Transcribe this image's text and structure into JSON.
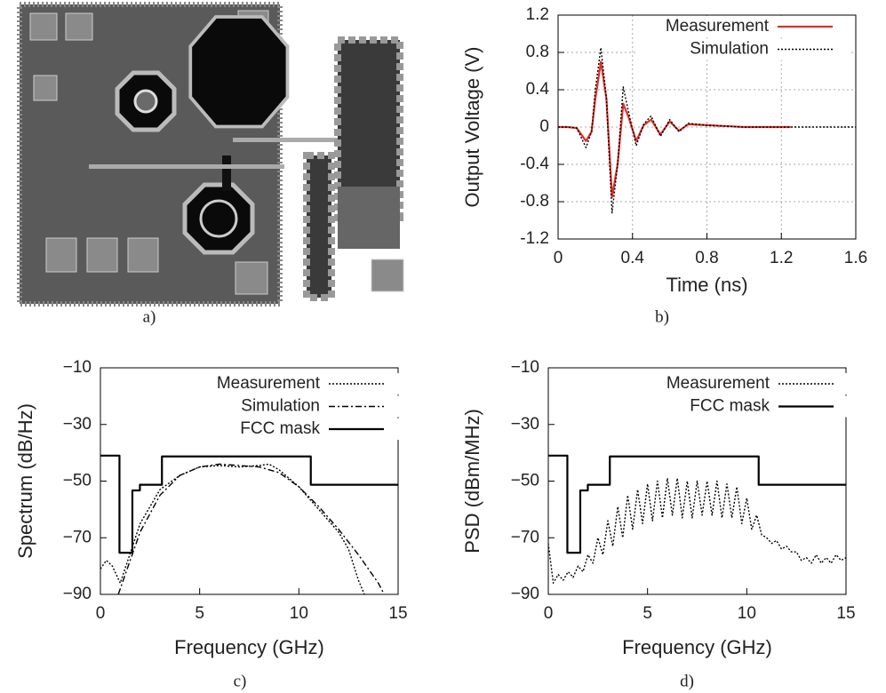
{
  "figure_a": {
    "caption": "a)"
  },
  "chart_data": [
    {
      "type": "line",
      "caption": "b)",
      "xlabel": "Time (ns)",
      "ylabel": "Output Voltage (V)",
      "xlim": [
        0,
        1.6
      ],
      "xticks": [
        0,
        0.4,
        0.8,
        1.2,
        1.6
      ],
      "ylim": [
        -1.2,
        1.2
      ],
      "yticks": [
        -1.2,
        -0.8,
        -0.4,
        0,
        0.4,
        0.8,
        1.2
      ],
      "grid": true,
      "legend": "top-right",
      "series": [
        {
          "name": "Measurement",
          "color": "#e0302a",
          "style": "solid",
          "x": [
            0,
            0.05,
            0.1,
            0.15,
            0.18,
            0.2,
            0.23,
            0.26,
            0.29,
            0.32,
            0.35,
            0.38,
            0.42,
            0.46,
            0.5,
            0.55,
            0.6,
            0.65,
            0.7,
            0.8,
            0.9,
            1.0,
            1.25
          ],
          "values": [
            0,
            0,
            -0.01,
            -0.15,
            -0.05,
            0.3,
            0.7,
            0.3,
            -0.75,
            -0.4,
            0.25,
            0.1,
            -0.15,
            0.02,
            0.08,
            -0.08,
            0.06,
            -0.04,
            0.03,
            0.02,
            0.01,
            0,
            0
          ]
        },
        {
          "name": "Simulation",
          "color": "#000000",
          "style": "dotted",
          "x": [
            0,
            0.05,
            0.1,
            0.15,
            0.18,
            0.2,
            0.23,
            0.26,
            0.29,
            0.32,
            0.35,
            0.38,
            0.42,
            0.46,
            0.5,
            0.55,
            0.6,
            0.65,
            0.7,
            0.8,
            0.9,
            1.0,
            1.25,
            1.6
          ],
          "values": [
            0,
            0,
            -0.01,
            -0.22,
            -0.05,
            0.4,
            0.85,
            0.3,
            -0.92,
            -0.4,
            0.43,
            0.15,
            -0.2,
            0.03,
            0.12,
            -0.1,
            0.08,
            -0.05,
            0.04,
            0.02,
            0.01,
            0,
            0,
            0
          ]
        }
      ]
    },
    {
      "type": "line",
      "caption": "c)",
      "xlabel": "Frequency (GHz)",
      "ylabel": "Spectrum (dB/Hz)",
      "xlim": [
        0,
        15
      ],
      "xticks": [
        0,
        5,
        10,
        15
      ],
      "ylim": [
        -90,
        -10
      ],
      "yticks": [
        {
          "value": -90,
          "label": "−90"
        },
        {
          "value": -70,
          "label": "−70"
        },
        {
          "value": -50,
          "label": "−50"
        },
        {
          "value": -30,
          "label": "−30"
        },
        {
          "value": -10,
          "label": "−10"
        }
      ],
      "grid": false,
      "legend": "top-right",
      "series": [
        {
          "name": "Measurement",
          "color": "#000000",
          "style": "dotted",
          "x": [
            0,
            0.3,
            0.6,
            1,
            2,
            3,
            4,
            5,
            6,
            7,
            8,
            8.5,
            9,
            10,
            11,
            12,
            12.5,
            13,
            13.3
          ],
          "values": [
            -81,
            -78,
            -80,
            -86,
            -65,
            -53,
            -48,
            -45,
            -44.5,
            -45,
            -44.5,
            -44,
            -46,
            -52,
            -60,
            -68,
            -74,
            -85,
            -90
          ]
        },
        {
          "name": "Simulation",
          "color": "#000000",
          "style": "dashdot",
          "x": [
            0.9,
            2,
            3,
            4,
            5,
            6,
            7,
            8,
            9,
            10,
            11,
            12,
            13,
            14,
            14.3
          ],
          "values": [
            -90,
            -68,
            -55,
            -48,
            -45,
            -44,
            -44.5,
            -45,
            -47,
            -52,
            -59,
            -67,
            -76,
            -86,
            -90
          ]
        },
        {
          "name": "FCC mask",
          "color": "#000000",
          "style": "solid",
          "x": [
            0,
            0.96,
            0.96,
            1.61,
            1.61,
            1.99,
            1.99,
            3.1,
            3.1,
            10.6,
            10.6,
            15
          ],
          "values": [
            -41,
            -41,
            -75.3,
            -75.3,
            -53.3,
            -53.3,
            -51.3,
            -51.3,
            -41.3,
            -41.3,
            -51.3,
            -51.3
          ]
        }
      ]
    },
    {
      "type": "line",
      "caption": "d)",
      "xlabel": "Frequency (GHz)",
      "ylabel": "PSD (dBm/MHz)",
      "xlim": [
        0,
        15
      ],
      "xticks": [
        0,
        5,
        10,
        15
      ],
      "ylim": [
        -90,
        -10
      ],
      "yticks": [
        {
          "value": -90,
          "label": "−90"
        },
        {
          "value": -70,
          "label": "−70"
        },
        {
          "value": -50,
          "label": "−50"
        },
        {
          "value": -30,
          "label": "−30"
        },
        {
          "value": -10,
          "label": "−10"
        }
      ],
      "grid": false,
      "legend": "top-right",
      "series": [
        {
          "name": "Measurement",
          "color": "#000000",
          "style": "dotted",
          "x": [
            0,
            0.25,
            0.5,
            0.75,
            1,
            1.25,
            1.5,
            1.75,
            2,
            2.25,
            2.5,
            2.75,
            3,
            3.25,
            3.5,
            3.75,
            4,
            4.25,
            4.5,
            4.75,
            5,
            5.25,
            5.5,
            5.75,
            6,
            6.25,
            6.5,
            6.75,
            7,
            7.25,
            7.5,
            7.75,
            8,
            8.25,
            8.5,
            8.75,
            9,
            9.25,
            9.5,
            9.75,
            10,
            10.25,
            10.5,
            10.75,
            11,
            11.25,
            11.5,
            11.75,
            12,
            12.25,
            12.5,
            12.75,
            13,
            13.25,
            13.5,
            13.75,
            14,
            14.25,
            14.5,
            14.75,
            15
          ],
          "values": [
            -72,
            -86,
            -83,
            -85,
            -82,
            -84,
            -80,
            -82,
            -76,
            -79,
            -70,
            -76,
            -64,
            -73,
            -59,
            -70,
            -55,
            -67,
            -53,
            -65,
            -51,
            -64,
            -50,
            -63,
            -49,
            -62,
            -49,
            -63,
            -50,
            -63,
            -50,
            -62,
            -50,
            -62,
            -50,
            -63,
            -51,
            -63,
            -52,
            -65,
            -56,
            -67,
            -62,
            -69,
            -70,
            -72,
            -71,
            -74,
            -73,
            -75,
            -75,
            -78,
            -77,
            -79,
            -76,
            -79,
            -77,
            -79,
            -76,
            -78,
            -77
          ]
        },
        {
          "name": "FCC mask",
          "color": "#000000",
          "style": "solid",
          "x": [
            0,
            0.96,
            0.96,
            1.61,
            1.61,
            1.99,
            1.99,
            3.1,
            3.1,
            10.6,
            10.6,
            15
          ],
          "values": [
            -41,
            -41,
            -75.3,
            -75.3,
            -53.3,
            -53.3,
            -51.3,
            -51.3,
            -41.3,
            -41.3,
            -51.3,
            -51.3
          ]
        }
      ]
    }
  ]
}
